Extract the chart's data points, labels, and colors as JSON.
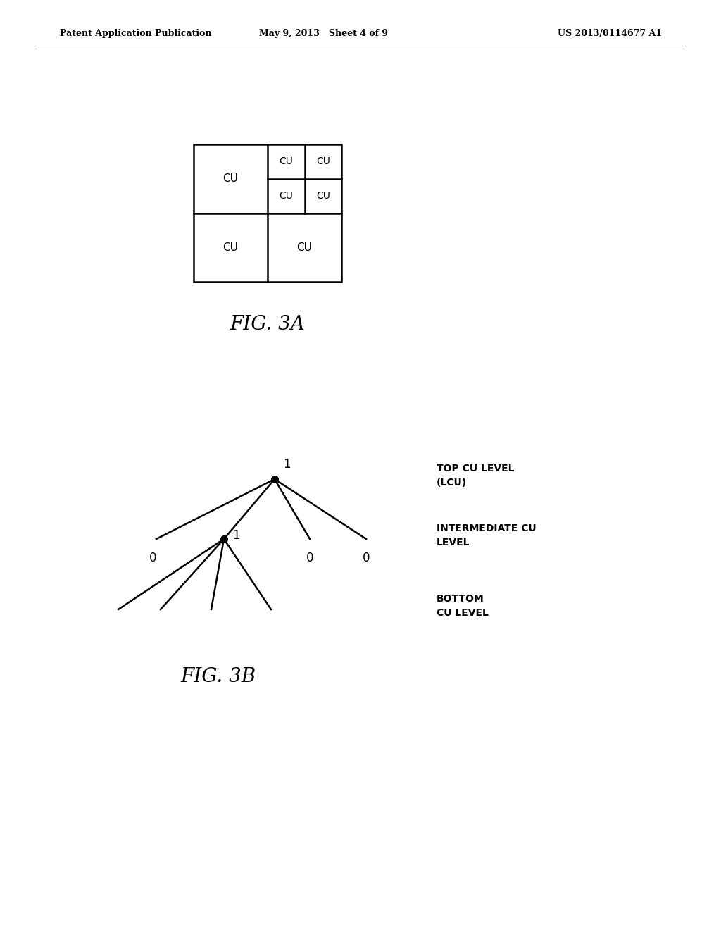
{
  "header_left": "Patent Application Publication",
  "header_mid": "May 9, 2013   Sheet 4 of 9",
  "header_right": "US 2013/0114677 A1",
  "fig3a_label": "FIG. 3A",
  "fig3b_label": "FIG. 3B",
  "top_cu_label": "TOP CU LEVEL\n(LCU)",
  "intermediate_cu_label": "INTERMEDIATE CU\nLEVEL",
  "bottom_cu_label": "BOTTOM\nCU LEVEL",
  "bg_color": "#ffffff",
  "line_color": "#000000",
  "text_color": "#000000"
}
